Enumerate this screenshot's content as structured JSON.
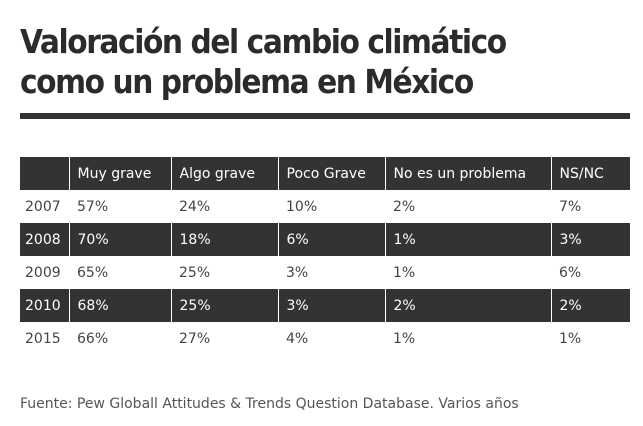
{
  "title": "Valoración del cambio climático como un problema en México",
  "source": "Fuente: Pew Globall Attitudes & Trends Question Database. Varios años",
  "colors": {
    "dark_row": "#333333",
    "light_row": "#ffffff",
    "header_text": "#ffffff"
  },
  "chart_data": {
    "type": "table",
    "title": "Valoración del cambio climático como un problema en México",
    "columns": [
      "",
      "Muy grave",
      "Algo grave",
      "Poco Grave",
      "No es un problema",
      "NS/NC"
    ],
    "rows": [
      {
        "year": "2007",
        "values": [
          "57%",
          "24%",
          "10%",
          "2%",
          "7%"
        ]
      },
      {
        "year": "2008",
        "values": [
          "70%",
          "18%",
          "6%",
          "1%",
          "3%"
        ]
      },
      {
        "year": "2009",
        "values": [
          "65%",
          "25%",
          "3%",
          "1%",
          "6%"
        ]
      },
      {
        "year": "2010",
        "values": [
          "68%",
          "25%",
          "3%",
          "2%",
          "2%"
        ]
      },
      {
        "year": "2015",
        "values": [
          "66%",
          "27%",
          "4%",
          "1%",
          "1%"
        ]
      }
    ]
  }
}
